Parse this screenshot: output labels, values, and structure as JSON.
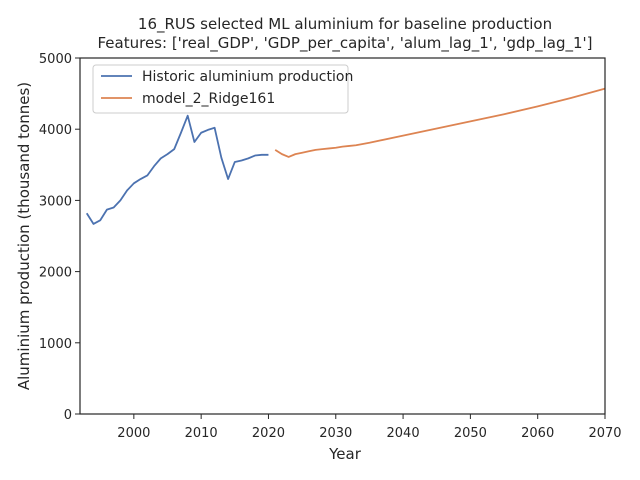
{
  "chart_data": {
    "type": "line",
    "title": "16_RUS selected ML aluminium for baseline production",
    "subtitle": "Features: ['real_GDP', 'GDP_per_capita', 'alum_lag_1', 'gdp_lag_1']",
    "xlabel": "Year",
    "ylabel": "Aluminium production (thousand tonnes)",
    "xlim": [
      1992,
      2070
    ],
    "ylim": [
      0,
      5000
    ],
    "xticks": [
      2000,
      2010,
      2020,
      2030,
      2040,
      2050,
      2060,
      2070
    ],
    "yticks": [
      0,
      1000,
      2000,
      3000,
      4000,
      5000
    ],
    "grid": false,
    "legend_position": "top-left",
    "series": [
      {
        "name": "Historic aluminium production",
        "color": "#4c72b0",
        "x": [
          1993,
          1994,
          1995,
          1996,
          1997,
          1998,
          1999,
          2000,
          2001,
          2002,
          2003,
          2004,
          2005,
          2006,
          2007,
          2008,
          2009,
          2010,
          2011,
          2012,
          2013,
          2014,
          2015,
          2016,
          2017,
          2018,
          2019,
          2020
        ],
        "y": [
          2820,
          2670,
          2720,
          2870,
          2900,
          3000,
          3140,
          3240,
          3300,
          3350,
          3480,
          3590,
          3650,
          3720,
          3950,
          4190,
          3820,
          3950,
          3990,
          4020,
          3600,
          3300,
          3540,
          3560,
          3590,
          3630,
          3640,
          3640
        ]
      },
      {
        "name": "model_2_Ridge161",
        "color": "#dd8452",
        "x": [
          2021,
          2022,
          2023,
          2024,
          2025,
          2026,
          2027,
          2028,
          2029,
          2030,
          2031,
          2032,
          2033,
          2035,
          2040,
          2045,
          2050,
          2055,
          2060,
          2065,
          2070
        ],
        "y": [
          3710,
          3650,
          3610,
          3650,
          3670,
          3690,
          3710,
          3720,
          3730,
          3740,
          3755,
          3765,
          3775,
          3810,
          3910,
          4010,
          4110,
          4210,
          4320,
          4440,
          4570
        ]
      }
    ]
  }
}
